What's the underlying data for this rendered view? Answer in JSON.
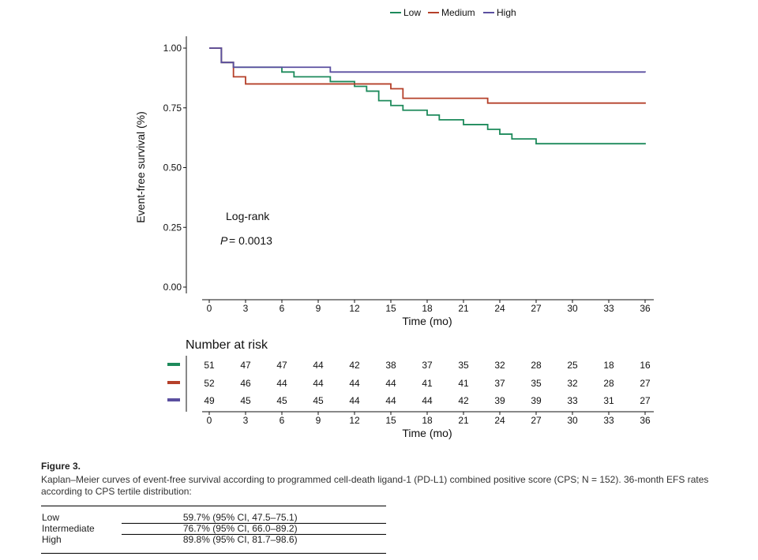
{
  "chart_data": {
    "type": "line",
    "subtype": "kaplan-meier step",
    "title": "",
    "xlabel": "Time (mo)",
    "ylabel": "Event-free survival (%)",
    "xlim": [
      0,
      36
    ],
    "ylim": [
      0,
      1
    ],
    "x_ticks": [
      "0",
      "3",
      "6",
      "9",
      "12",
      "15",
      "18",
      "21",
      "24",
      "27",
      "30",
      "33",
      "36"
    ],
    "y_ticks": [
      "0.00",
      "0.25",
      "0.50",
      "0.75",
      "1.00"
    ],
    "grid": false,
    "legend": {
      "placement": "top-center",
      "entries": [
        "Low",
        "Medium",
        "High"
      ]
    },
    "series": [
      {
        "name": "Low",
        "color": "#1d8a5b",
        "points": [
          [
            0,
            1.0
          ],
          [
            1,
            0.94
          ],
          [
            2,
            0.92
          ],
          [
            6,
            0.9
          ],
          [
            7,
            0.88
          ],
          [
            10,
            0.86
          ],
          [
            12,
            0.84
          ],
          [
            13,
            0.82
          ],
          [
            14,
            0.78
          ],
          [
            15,
            0.76
          ],
          [
            16,
            0.74
          ],
          [
            18,
            0.72
          ],
          [
            19,
            0.7
          ],
          [
            21,
            0.68
          ],
          [
            23,
            0.66
          ],
          [
            24,
            0.64
          ],
          [
            25,
            0.62
          ],
          [
            27,
            0.6
          ],
          [
            36,
            0.597
          ]
        ]
      },
      {
        "name": "Medium",
        "color": "#b5402a",
        "points": [
          [
            0,
            1.0
          ],
          [
            1,
            0.94
          ],
          [
            2,
            0.88
          ],
          [
            3,
            0.85
          ],
          [
            12,
            0.85
          ],
          [
            15,
            0.83
          ],
          [
            16,
            0.79
          ],
          [
            23,
            0.77
          ],
          [
            36,
            0.767
          ]
        ]
      },
      {
        "name": "High",
        "color": "#5b4fa0",
        "points": [
          [
            0,
            1.0
          ],
          [
            1,
            0.94
          ],
          [
            2,
            0.92
          ],
          [
            10,
            0.9
          ],
          [
            36,
            0.898
          ]
        ]
      }
    ],
    "annotations": {
      "test": "Log-rank",
      "p_label": "P",
      "p_value": "= 0.0013"
    },
    "risk_table": {
      "title": "Number at risk",
      "xlabel": "Time (mo)",
      "rows": [
        {
          "color": "#1d8a5b",
          "values": [
            "51",
            "47",
            "47",
            "44",
            "42",
            "38",
            "37",
            "35",
            "32",
            "28",
            "25",
            "18",
            "16"
          ]
        },
        {
          "color": "#b5402a",
          "values": [
            "52",
            "46",
            "44",
            "44",
            "44",
            "44",
            "41",
            "41",
            "37",
            "35",
            "32",
            "28",
            "27"
          ]
        },
        {
          "color": "#5b4fa0",
          "values": [
            "49",
            "45",
            "45",
            "45",
            "44",
            "44",
            "44",
            "42",
            "39",
            "39",
            "33",
            "31",
            "27"
          ]
        }
      ]
    }
  },
  "caption": {
    "label": "Figure 3.",
    "text": "Kaplan–Meier curves of event-free survival according to programmed cell-death ligand-1 (PD-L1) combined positive score (CPS; N = 152). 36-month EFS rates according to CPS tertile distribution:"
  },
  "rates_table": [
    {
      "group": "Low",
      "value": "59.7% (95% CI, 47.5–75.1)"
    },
    {
      "group": "Intermediate",
      "value": "76.7% (95% CI, 66.0–89.2)"
    },
    {
      "group": "High",
      "value": "89.8% (95% CI, 81.7–98.6)"
    }
  ]
}
